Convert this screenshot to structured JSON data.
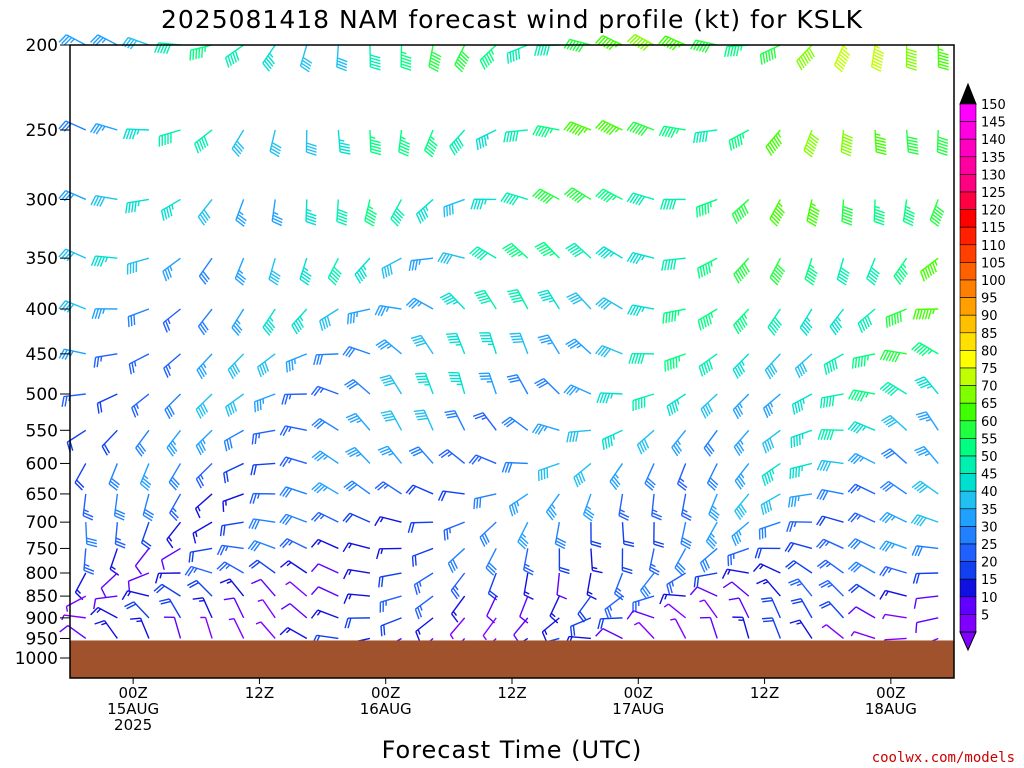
{
  "chart_data": {
    "type": "wind_barb_time_height",
    "title": "2025081418 NAM forecast wind profile (kt) for KSLK",
    "xlabel": "Forecast Time (UTC)",
    "ylabel": "",
    "credit": "coolwx.com/models",
    "pressure_levels": [
      200,
      250,
      300,
      350,
      400,
      450,
      500,
      550,
      600,
      650,
      700,
      750,
      800,
      850,
      900,
      950,
      1000
    ],
    "ylim": [
      200,
      1000
    ],
    "x_ticks": [
      {
        "hour": 6,
        "lines": [
          "00Z",
          "15AUG",
          "2025"
        ]
      },
      {
        "hour": 18,
        "lines": [
          "12Z"
        ]
      },
      {
        "hour": 30,
        "lines": [
          "00Z",
          "16AUG"
        ]
      },
      {
        "hour": 42,
        "lines": [
          "12Z"
        ]
      },
      {
        "hour": 54,
        "lines": [
          "00Z",
          "17AUG"
        ]
      },
      {
        "hour": 66,
        "lines": [
          "12Z"
        ]
      },
      {
        "hour": 78,
        "lines": [
          "00Z",
          "18AUG"
        ]
      }
    ],
    "xlim": [
      0,
      84
    ],
    "barb_interval_hours": 3,
    "legend_levels": [
      5,
      10,
      15,
      20,
      25,
      30,
      35,
      40,
      45,
      50,
      55,
      60,
      65,
      70,
      75,
      80,
      85,
      90,
      95,
      100,
      105,
      110,
      115,
      120,
      125,
      130,
      135,
      140,
      145,
      150
    ],
    "legend_colors": [
      "#8000ff",
      "#6000ff",
      "#1010e0",
      "#1040f0",
      "#2060ff",
      "#2080ff",
      "#20a0ff",
      "#20c0f0",
      "#00e0d0",
      "#00f0b0",
      "#00ff80",
      "#20ff40",
      "#40ff00",
      "#80ff00",
      "#c0ff00",
      "#ffff00",
      "#ffe000",
      "#ffc000",
      "#ffa000",
      "#ff8000",
      "#ff6000",
      "#ff4000",
      "#ff2000",
      "#ff0000",
      "#ff0040",
      "#ff0080",
      "#ff00a0",
      "#ff00c0",
      "#ff00e0",
      "#ff00ff"
    ],
    "terrain_color": "#a0522d",
    "surface_pressure_hpa": 955
  }
}
